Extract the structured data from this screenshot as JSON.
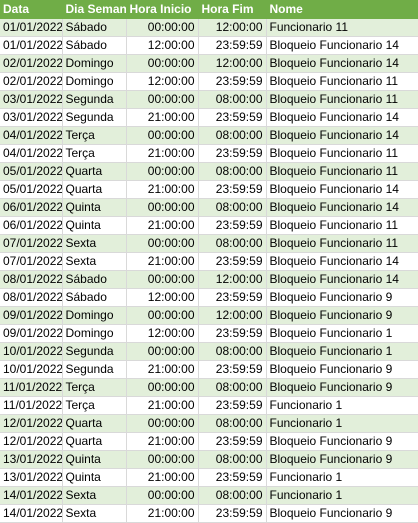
{
  "headers": [
    "Data",
    "Dia Semana",
    "Hora Inicio",
    "Hora Fim",
    "Nome"
  ],
  "rows": [
    [
      "01/01/2022",
      "Sábado",
      "00:00:00",
      "12:00:00",
      "Funcionario 11"
    ],
    [
      "01/01/2022",
      "Sábado",
      "12:00:00",
      "23:59:59",
      "Bloqueio Funcionario 14"
    ],
    [
      "02/01/2022",
      "Domingo",
      "00:00:00",
      "12:00:00",
      "Bloqueio Funcionario 14"
    ],
    [
      "02/01/2022",
      "Domingo",
      "12:00:00",
      "23:59:59",
      "Bloqueio Funcionario 11"
    ],
    [
      "03/01/2022",
      "Segunda",
      "00:00:00",
      "08:00:00",
      "Bloqueio Funcionario 11"
    ],
    [
      "03/01/2022",
      "Segunda",
      "21:00:00",
      "23:59:59",
      "Bloqueio Funcionario 14"
    ],
    [
      "04/01/2022",
      "Terça",
      "00:00:00",
      "08:00:00",
      "Bloqueio Funcionario 14"
    ],
    [
      "04/01/2022",
      "Terça",
      "21:00:00",
      "23:59:59",
      "Bloqueio Funcionario 11"
    ],
    [
      "05/01/2022",
      "Quarta",
      "00:00:00",
      "08:00:00",
      "Bloqueio Funcionario 11"
    ],
    [
      "05/01/2022",
      "Quarta",
      "21:00:00",
      "23:59:59",
      "Bloqueio Funcionario 14"
    ],
    [
      "06/01/2022",
      "Quinta",
      "00:00:00",
      "08:00:00",
      "Bloqueio Funcionario 14"
    ],
    [
      "06/01/2022",
      "Quinta",
      "21:00:00",
      "23:59:59",
      "Bloqueio Funcionario 11"
    ],
    [
      "07/01/2022",
      "Sexta",
      "00:00:00",
      "08:00:00",
      "Bloqueio Funcionario 11"
    ],
    [
      "07/01/2022",
      "Sexta",
      "21:00:00",
      "23:59:59",
      "Bloqueio Funcionario 14"
    ],
    [
      "08/01/2022",
      "Sábado",
      "00:00:00",
      "12:00:00",
      "Bloqueio Funcionario 14"
    ],
    [
      "08/01/2022",
      "Sábado",
      "12:00:00",
      "23:59:59",
      "Bloqueio Funcionario 9"
    ],
    [
      "09/01/2022",
      "Domingo",
      "00:00:00",
      "12:00:00",
      "Bloqueio Funcionario 9"
    ],
    [
      "09/01/2022",
      "Domingo",
      "12:00:00",
      "23:59:59",
      "Bloqueio Funcionario 1"
    ],
    [
      "10/01/2022",
      "Segunda",
      "00:00:00",
      "08:00:00",
      "Bloqueio Funcionario 1"
    ],
    [
      "10/01/2022",
      "Segunda",
      "21:00:00",
      "23:59:59",
      "Bloqueio Funcionario 9"
    ],
    [
      "11/01/2022",
      "Terça",
      "00:00:00",
      "08:00:00",
      "Bloqueio Funcionario 9"
    ],
    [
      "11/01/2022",
      "Terça",
      "21:00:00",
      "23:59:59",
      "Funcionario 1"
    ],
    [
      "12/01/2022",
      "Quarta",
      "00:00:00",
      "08:00:00",
      "Funcionario 1"
    ],
    [
      "12/01/2022",
      "Quarta",
      "21:00:00",
      "23:59:59",
      "Bloqueio Funcionario 9"
    ],
    [
      "13/01/2022",
      "Quinta",
      "00:00:00",
      "08:00:00",
      "Bloqueio Funcionario 9"
    ],
    [
      "13/01/2022",
      "Quinta",
      "21:00:00",
      "23:59:59",
      "Funcionario 1"
    ],
    [
      "14/01/2022",
      "Sexta",
      "00:00:00",
      "08:00:00",
      "Funcionario 1"
    ],
    [
      "14/01/2022",
      "Sexta",
      "21:00:00",
      "23:59:59",
      "Bloqueio Funcionario 9"
    ]
  ],
  "colors": {
    "header_bg": "#70ad47",
    "band_bg": "#e2efda",
    "header_text": "#ffffff"
  }
}
